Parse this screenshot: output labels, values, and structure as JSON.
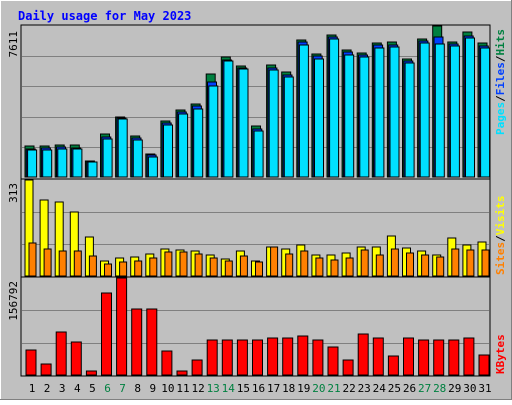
{
  "title": "Daily usage for May 2023",
  "colors": {
    "background": "#c0c0c0",
    "title": "#0000ff",
    "hits": "#008040",
    "files": "#0040ff",
    "pages": "#00e0ff",
    "visits": "#ffff00",
    "sites": "#ff8000",
    "kbytes": "#ff0000",
    "weekday_text": "#000000",
    "weekend_text": "#008040"
  },
  "side_labels": {
    "top": [
      {
        "text": "Pages",
        "color": "#00e0ff"
      },
      {
        "text": "/",
        "color": "#000000"
      },
      {
        "text": "Files",
        "color": "#0040ff"
      },
      {
        "text": "/",
        "color": "#000000"
      },
      {
        "text": "Hits",
        "color": "#008040"
      }
    ],
    "mid": [
      {
        "text": "Sites",
        "color": "#ff8000"
      },
      {
        "text": "/",
        "color": "#000000"
      },
      {
        "text": "Visits",
        "color": "#ffff00"
      }
    ],
    "bot": [
      {
        "text": "KBytes",
        "color": "#ff0000"
      }
    ]
  },
  "chart_data": [
    {
      "type": "bar",
      "panel": "top",
      "max_label": "7611",
      "ylim": [
        0,
        7611
      ],
      "grid": true,
      "x": [
        1,
        2,
        3,
        4,
        5,
        6,
        7,
        8,
        9,
        10,
        11,
        12,
        13,
        14,
        15,
        16,
        17,
        18,
        19,
        20,
        21,
        22,
        23,
        24,
        25,
        26,
        27,
        28,
        29,
        30,
        31
      ],
      "weekend": [
        6,
        7,
        13,
        14,
        20,
        21,
        27,
        28
      ],
      "series": [
        {
          "name": "Hits",
          "values": [
            1550,
            1550,
            1600,
            1600,
            820,
            2150,
            3030,
            2080,
            1180,
            2830,
            3390,
            3690,
            5180,
            6050,
            5610,
            2570,
            5630,
            5270,
            6910,
            6180,
            7160,
            6390,
            6260,
            6730,
            6780,
            5960,
            6980,
            7611,
            6780,
            7331,
            6730
          ]
        },
        {
          "name": "Files",
          "values": [
            1420,
            1450,
            1490,
            1480,
            760,
            2020,
            2960,
            1980,
            1090,
            2700,
            3270,
            3560,
            4800,
            5910,
            5510,
            2440,
            5510,
            5160,
            6790,
            6080,
            7060,
            6280,
            6160,
            6630,
            6670,
            5860,
            6880,
            7060,
            6690,
            7130,
            6620
          ]
        },
        {
          "name": "Pages",
          "values": [
            1380,
            1380,
            1410,
            1390,
            740,
            1930,
            2900,
            1880,
            1010,
            2620,
            3200,
            3430,
            4610,
            5830,
            5420,
            2330,
            5390,
            5030,
            6660,
            5960,
            6950,
            6160,
            6050,
            6520,
            6560,
            5750,
            6770,
            6700,
            6590,
            6990,
            6510
          ]
        }
      ]
    },
    {
      "type": "bar",
      "panel": "mid",
      "max_label": "313",
      "ylim": [
        0,
        313
      ],
      "grid": true,
      "x": [
        1,
        2,
        3,
        4,
        5,
        6,
        7,
        8,
        9,
        10,
        11,
        12,
        13,
        14,
        15,
        16,
        17,
        18,
        19,
        20,
        21,
        22,
        23,
        24,
        25,
        26,
        27,
        28,
        29,
        30,
        31
      ],
      "series": [
        {
          "name": "Visits",
          "values": [
            313,
            248,
            240,
            208,
            128,
            50,
            58,
            63,
            73,
            88,
            85,
            82,
            68,
            55,
            80,
            50,
            93,
            88,
            100,
            70,
            68,
            75,
            93,
            93,
            130,
            90,
            80,
            70,
            123,
            100,
            110
          ]
        },
        {
          "name": "Sites",
          "values": [
            108,
            88,
            83,
            80,
            65,
            38,
            45,
            50,
            60,
            78,
            78,
            73,
            58,
            50,
            65,
            45,
            95,
            73,
            80,
            58,
            53,
            60,
            85,
            70,
            88,
            75,
            70,
            63,
            88,
            85,
            85
          ]
        }
      ]
    },
    {
      "type": "bar",
      "panel": "bot",
      "max_label": "156792",
      "ylim": [
        0,
        156792
      ],
      "grid": true,
      "x": [
        1,
        2,
        3,
        4,
        5,
        6,
        7,
        8,
        9,
        10,
        11,
        12,
        13,
        14,
        15,
        16,
        17,
        18,
        19,
        20,
        21,
        22,
        23,
        24,
        25,
        26,
        27,
        28,
        29,
        30,
        31
      ],
      "series": [
        {
          "name": "KBytes",
          "values": [
            40000,
            17000,
            70000,
            53000,
            7000,
            133000,
            156792,
            107000,
            107000,
            38000,
            7000,
            24000,
            56000,
            56000,
            56000,
            56000,
            59000,
            59000,
            63000,
            56000,
            46000,
            24000,
            66000,
            59000,
            31000,
            59000,
            56000,
            56000,
            56000,
            59000,
            33000
          ]
        }
      ]
    }
  ]
}
